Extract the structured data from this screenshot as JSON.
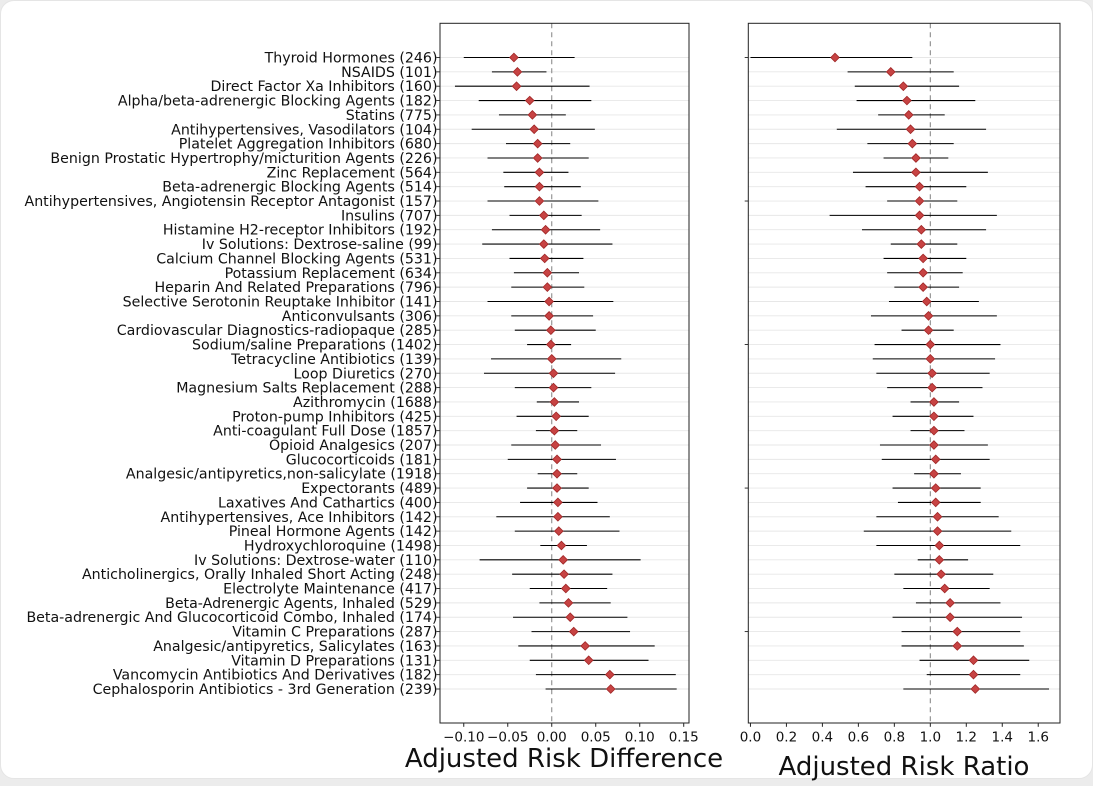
{
  "chart_data": {
    "type": "scatter",
    "variant": "forest-plot-two-panel",
    "panels": [
      {
        "key": "rd",
        "xlabel": "Adjusted Risk Difference",
        "xlim": [
          -0.127,
          0.156
        ],
        "refline": 0.0,
        "ticks": [
          -0.1,
          -0.05,
          0.0,
          0.05,
          0.1,
          0.15
        ],
        "tick_labels": [
          "−0.10",
          "−0.05",
          "0.00",
          "0.05",
          "0.10",
          "0.15"
        ],
        "ytick_rows": "all"
      },
      {
        "key": "rr",
        "xlabel": "Adjusted Risk Ratio",
        "xlim": [
          -0.012,
          1.721
        ],
        "refline": 1.0,
        "ticks": [
          0.0,
          0.2,
          0.4,
          0.6,
          0.8,
          1.0,
          1.2,
          1.4,
          1.6
        ],
        "tick_labels": [
          "0.0",
          "0.2",
          "0.4",
          "0.6",
          "0.8",
          "1.0",
          "1.2",
          "1.4",
          "1.6"
        ],
        "ytick_rows": [
          0,
          10,
          20,
          30,
          40
        ]
      }
    ],
    "rows": [
      {
        "label": "Thyroid Hormones (246)",
        "rd": -0.043,
        "rd_ci": [
          -0.1,
          0.026
        ],
        "rr": 0.47,
        "rr_ci": [
          0.0,
          0.9
        ]
      },
      {
        "label": "NSAIDS (101)",
        "rd": -0.039,
        "rd_ci": [
          -0.068,
          -0.006
        ],
        "rr": 0.78,
        "rr_ci": [
          0.54,
          1.13
        ]
      },
      {
        "label": "Direct Factor Xa Inhibitors (160)",
        "rd": -0.04,
        "rd_ci": [
          -0.11,
          0.043
        ],
        "rr": 0.85,
        "rr_ci": [
          0.58,
          1.16
        ]
      },
      {
        "label": "Alpha/beta-adrenergic Blocking Agents (182)",
        "rd": -0.025,
        "rd_ci": [
          -0.083,
          0.045
        ],
        "rr": 0.87,
        "rr_ci": [
          0.59,
          1.25
        ]
      },
      {
        "label": "Statins (775)",
        "rd": -0.022,
        "rd_ci": [
          -0.06,
          0.016
        ],
        "rr": 0.88,
        "rr_ci": [
          0.71,
          1.08
        ]
      },
      {
        "label": "Antihypertensives, Vasodilators (104)",
        "rd": -0.02,
        "rd_ci": [
          -0.091,
          0.049
        ],
        "rr": 0.89,
        "rr_ci": [
          0.48,
          1.31
        ]
      },
      {
        "label": "Platelet Aggregation Inhibitors (680)",
        "rd": -0.016,
        "rd_ci": [
          -0.052,
          0.021
        ],
        "rr": 0.9,
        "rr_ci": [
          0.65,
          1.13
        ]
      },
      {
        "label": "Benign Prostatic Hypertrophy/micturition Agents (226)",
        "rd": -0.016,
        "rd_ci": [
          -0.073,
          0.042
        ],
        "rr": 0.92,
        "rr_ci": [
          0.74,
          1.1
        ]
      },
      {
        "label": "Zinc Replacement (564)",
        "rd": -0.014,
        "rd_ci": [
          -0.055,
          0.019
        ],
        "rr": 0.92,
        "rr_ci": [
          0.57,
          1.32
        ]
      },
      {
        "label": "Beta-adrenergic Blocking Agents (514)",
        "rd": -0.014,
        "rd_ci": [
          -0.054,
          0.033
        ],
        "rr": 0.94,
        "rr_ci": [
          0.64,
          1.2
        ]
      },
      {
        "label": "Antihypertensives, Angiotensin Receptor Antagonist (157)",
        "rd": -0.014,
        "rd_ci": [
          -0.073,
          0.053
        ],
        "rr": 0.94,
        "rr_ci": [
          0.76,
          1.15
        ]
      },
      {
        "label": "Insulins (707)",
        "rd": -0.009,
        "rd_ci": [
          -0.048,
          0.034
        ],
        "rr": 0.94,
        "rr_ci": [
          0.44,
          1.37
        ]
      },
      {
        "label": "Histamine H2-receptor Inhibitors (192)",
        "rd": -0.007,
        "rd_ci": [
          -0.068,
          0.055
        ],
        "rr": 0.95,
        "rr_ci": [
          0.62,
          1.31
        ]
      },
      {
        "label": "Iv Solutions: Dextrose-saline (99)",
        "rd": -0.009,
        "rd_ci": [
          -0.079,
          0.069
        ],
        "rr": 0.95,
        "rr_ci": [
          0.78,
          1.15
        ]
      },
      {
        "label": "Calcium Channel Blocking Agents (531)",
        "rd": -0.008,
        "rd_ci": [
          -0.048,
          0.036
        ],
        "rr": 0.96,
        "rr_ci": [
          0.74,
          1.2
        ]
      },
      {
        "label": "Potassium Replacement (634)",
        "rd": -0.005,
        "rd_ci": [
          -0.043,
          0.031
        ],
        "rr": 0.96,
        "rr_ci": [
          0.76,
          1.18
        ]
      },
      {
        "label": "Heparin And Related Preparations (796)",
        "rd": -0.005,
        "rd_ci": [
          -0.046,
          0.037
        ],
        "rr": 0.96,
        "rr_ci": [
          0.8,
          1.16
        ]
      },
      {
        "label": "Selective Serotonin Reuptake Inhibitor (141)",
        "rd": -0.003,
        "rd_ci": [
          -0.073,
          0.07
        ],
        "rr": 0.98,
        "rr_ci": [
          0.77,
          1.27
        ]
      },
      {
        "label": "Anticonvulsants (306)",
        "rd": -0.003,
        "rd_ci": [
          -0.046,
          0.047
        ],
        "rr": 0.99,
        "rr_ci": [
          0.67,
          1.37
        ]
      },
      {
        "label": "Cardiovascular Diagnostics-radiopaque (285)",
        "rd": -0.001,
        "rd_ci": [
          -0.042,
          0.05
        ],
        "rr": 0.99,
        "rr_ci": [
          0.84,
          1.13
        ]
      },
      {
        "label": "Sodium/saline Preparations (1402)",
        "rd": -0.001,
        "rd_ci": [
          -0.028,
          0.022
        ],
        "rr": 1.0,
        "rr_ci": [
          0.69,
          1.39
        ]
      },
      {
        "label": "Tetracycline Antibiotics (139)",
        "rd": 0.0,
        "rd_ci": [
          -0.069,
          0.079
        ],
        "rr": 1.0,
        "rr_ci": [
          0.68,
          1.36
        ]
      },
      {
        "label": "Loop Diuretics (270)",
        "rd": 0.002,
        "rd_ci": [
          -0.077,
          0.072
        ],
        "rr": 1.01,
        "rr_ci": [
          0.7,
          1.33
        ]
      },
      {
        "label": "Magnesium Salts Replacement (288)",
        "rd": 0.002,
        "rd_ci": [
          -0.042,
          0.045
        ],
        "rr": 1.01,
        "rr_ci": [
          0.76,
          1.29
        ]
      },
      {
        "label": "Azithromycin (1688)",
        "rd": 0.003,
        "rd_ci": [
          -0.017,
          0.031
        ],
        "rr": 1.02,
        "rr_ci": [
          0.89,
          1.16
        ]
      },
      {
        "label": "Proton-pump Inhibitors (425)",
        "rd": 0.005,
        "rd_ci": [
          -0.04,
          0.042
        ],
        "rr": 1.02,
        "rr_ci": [
          0.79,
          1.24
        ]
      },
      {
        "label": "Anti-coagulant Full Dose (1857)",
        "rd": 0.003,
        "rd_ci": [
          -0.018,
          0.029
        ],
        "rr": 1.02,
        "rr_ci": [
          0.89,
          1.19
        ]
      },
      {
        "label": "Opioid Analgesics (207)",
        "rd": 0.004,
        "rd_ci": [
          -0.046,
          0.056
        ],
        "rr": 1.02,
        "rr_ci": [
          0.72,
          1.32
        ]
      },
      {
        "label": "Glucocorticoids (181)",
        "rd": 0.006,
        "rd_ci": [
          -0.05,
          0.073
        ],
        "rr": 1.03,
        "rr_ci": [
          0.73,
          1.33
        ]
      },
      {
        "label": "Analgesic/antipyretics,non-salicylate (1918)",
        "rd": 0.006,
        "rd_ci": [
          -0.016,
          0.029
        ],
        "rr": 1.02,
        "rr_ci": [
          0.91,
          1.17
        ]
      },
      {
        "label": "Expectorants (489)",
        "rd": 0.006,
        "rd_ci": [
          -0.028,
          0.042
        ],
        "rr": 1.03,
        "rr_ci": [
          0.79,
          1.28
        ]
      },
      {
        "label": "Laxatives And Cathartics (400)",
        "rd": 0.007,
        "rd_ci": [
          -0.036,
          0.052
        ],
        "rr": 1.03,
        "rr_ci": [
          0.82,
          1.28
        ]
      },
      {
        "label": "Antihypertensives, Ace Inhibitors (142)",
        "rd": 0.007,
        "rd_ci": [
          -0.063,
          0.066
        ],
        "rr": 1.04,
        "rr_ci": [
          0.7,
          1.38
        ]
      },
      {
        "label": "Pineal Hormone Agents (142)",
        "rd": 0.008,
        "rd_ci": [
          -0.042,
          0.077
        ],
        "rr": 1.04,
        "rr_ci": [
          0.63,
          1.45
        ]
      },
      {
        "label": "Hydroxychloroquine (1498)",
        "rd": 0.011,
        "rd_ci": [
          -0.013,
          0.04
        ],
        "rr": 1.05,
        "rr_ci": [
          0.7,
          1.5
        ]
      },
      {
        "label": "Iv Solutions: Dextrose-water (110)",
        "rd": 0.013,
        "rd_ci": [
          -0.082,
          0.101
        ],
        "rr": 1.05,
        "rr_ci": [
          0.93,
          1.21
        ]
      },
      {
        "label": "Anticholinergics, Orally Inhaled Short Acting (248)",
        "rd": 0.014,
        "rd_ci": [
          -0.045,
          0.069
        ],
        "rr": 1.06,
        "rr_ci": [
          0.8,
          1.35
        ]
      },
      {
        "label": "Electrolyte Maintenance (417)",
        "rd": 0.016,
        "rd_ci": [
          -0.025,
          0.063
        ],
        "rr": 1.08,
        "rr_ci": [
          0.85,
          1.33
        ]
      },
      {
        "label": "Beta-Adrenergic Agents, Inhaled (529)",
        "rd": 0.019,
        "rd_ci": [
          -0.014,
          0.067
        ],
        "rr": 1.11,
        "rr_ci": [
          0.92,
          1.39
        ]
      },
      {
        "label": "Beta-adrenergic And Glucocorticoid Combo, Inhaled (174)",
        "rd": 0.021,
        "rd_ci": [
          -0.044,
          0.086
        ],
        "rr": 1.11,
        "rr_ci": [
          0.79,
          1.51
        ]
      },
      {
        "label": "Vitamin C Preparations (287)",
        "rd": 0.025,
        "rd_ci": [
          -0.023,
          0.089
        ],
        "rr": 1.15,
        "rr_ci": [
          0.84,
          1.5
        ]
      },
      {
        "label": "Analgesic/antipyretics, Salicylates (163)",
        "rd": 0.038,
        "rd_ci": [
          -0.038,
          0.117
        ],
        "rr": 1.15,
        "rr_ci": [
          0.84,
          1.52
        ]
      },
      {
        "label": "Vitamin D Preparations (131)",
        "rd": 0.042,
        "rd_ci": [
          -0.025,
          0.11
        ],
        "rr": 1.24,
        "rr_ci": [
          0.94,
          1.55
        ]
      },
      {
        "label": "Vancomycin Antibiotics And Derivatives (182)",
        "rd": 0.066,
        "rd_ci": [
          -0.018,
          0.141
        ],
        "rr": 1.24,
        "rr_ci": [
          0.98,
          1.5
        ]
      },
      {
        "label": "Cephalosporin Antibiotics - 3rd Generation (239)",
        "rd": 0.067,
        "rd_ci": [
          -0.007,
          0.142
        ],
        "rr": 1.25,
        "rr_ci": [
          0.85,
          1.66
        ]
      }
    ],
    "style": {
      "marker_color": "#c74343",
      "marker_edge": "#9f2626",
      "errorbar_color": "#000000",
      "grid_color": "#e7e7e7",
      "ref_color": "#8c8c8c",
      "spine_color": "#222222",
      "text_color": "#111111"
    },
    "legend": null,
    "grid": "horizontal"
  }
}
